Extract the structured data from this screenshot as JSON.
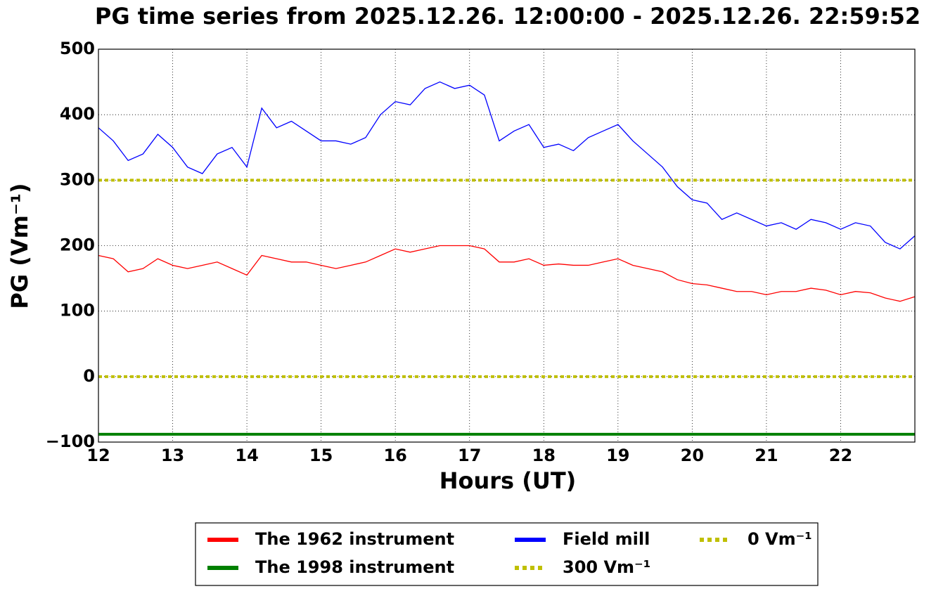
{
  "chart_data": {
    "type": "line",
    "title": "PG time series from 2025.12.26. 12:00:00 - 2025.12.26. 22:59:52",
    "x_label": "Hours (UT)",
    "y_label": "PG (Vm⁻¹)",
    "x": [
      12.0,
      12.2,
      12.4,
      12.6,
      12.8,
      13.0,
      13.2,
      13.4,
      13.6,
      13.8,
      14.0,
      14.2,
      14.4,
      14.6,
      14.8,
      15.0,
      15.2,
      15.4,
      15.6,
      15.8,
      16.0,
      16.2,
      16.4,
      16.6,
      16.8,
      17.0,
      17.2,
      17.4,
      17.6,
      17.8,
      18.0,
      18.2,
      18.4,
      18.6,
      18.8,
      19.0,
      19.2,
      19.4,
      19.6,
      19.8,
      20.0,
      20.2,
      20.4,
      20.6,
      20.8,
      21.0,
      21.2,
      21.4,
      21.6,
      21.8,
      22.0,
      22.2,
      22.4,
      22.6,
      22.8,
      23.0
    ],
    "series": [
      {
        "name": "The 1962 instrument",
        "color": "#ff0000",
        "values": [
          185,
          180,
          160,
          165,
          180,
          170,
          165,
          170,
          175,
          165,
          155,
          185,
          180,
          175,
          175,
          170,
          165,
          170,
          175,
          185,
          195,
          190,
          195,
          200,
          200,
          200,
          195,
          175,
          175,
          180,
          170,
          172,
          170,
          170,
          175,
          180,
          170,
          165,
          160,
          148,
          142,
          140,
          135,
          130,
          130,
          125,
          130,
          130,
          135,
          132,
          125,
          130,
          128,
          120,
          115,
          122
        ]
      },
      {
        "name": "The 1998 instrument",
        "color": "#008000",
        "values": [
          -88,
          -88,
          -88,
          -88,
          -88,
          -88,
          -88,
          -88,
          -88,
          -88,
          -88,
          -88,
          -88,
          -88,
          -88,
          -88,
          -88,
          -88,
          -88,
          -88,
          -88,
          -88,
          -88,
          -88,
          -88,
          -88,
          -88,
          -88,
          -88,
          -88,
          -88,
          -88,
          -88,
          -88,
          -88,
          -88,
          -88,
          -88,
          -88,
          -88,
          -88,
          -88,
          -88,
          -88,
          -88,
          -88,
          -88,
          -88,
          -88,
          -88,
          -88,
          -88,
          -88,
          -88,
          -88,
          -88
        ]
      },
      {
        "name": "Field mill",
        "color": "#0000ff",
        "values": [
          380,
          360,
          330,
          340,
          370,
          350,
          320,
          310,
          340,
          350,
          320,
          410,
          380,
          390,
          375,
          360,
          360,
          355,
          365,
          400,
          420,
          415,
          440,
          450,
          440,
          445,
          430,
          360,
          375,
          385,
          350,
          355,
          345,
          365,
          375,
          385,
          360,
          340,
          320,
          290,
          270,
          265,
          240,
          250,
          240,
          230,
          235,
          225,
          240,
          235,
          225,
          235,
          230,
          205,
          195,
          215
        ]
      }
    ],
    "hlines": [
      {
        "name": "300 Vm⁻¹",
        "value": 300,
        "color": "#bfbf00"
      },
      {
        "name": "0 Vm⁻¹",
        "value": 0,
        "color": "#bfbf00"
      }
    ],
    "xlim": [
      12,
      23
    ],
    "ylim": [
      -100,
      500
    ],
    "xticks": [
      12,
      13,
      14,
      15,
      16,
      17,
      18,
      19,
      20,
      21,
      22
    ],
    "yticks": [
      {
        "value": -100,
        "label": "−100"
      },
      0,
      100,
      200,
      300,
      400,
      500
    ],
    "grid": true,
    "legend": "below"
  }
}
